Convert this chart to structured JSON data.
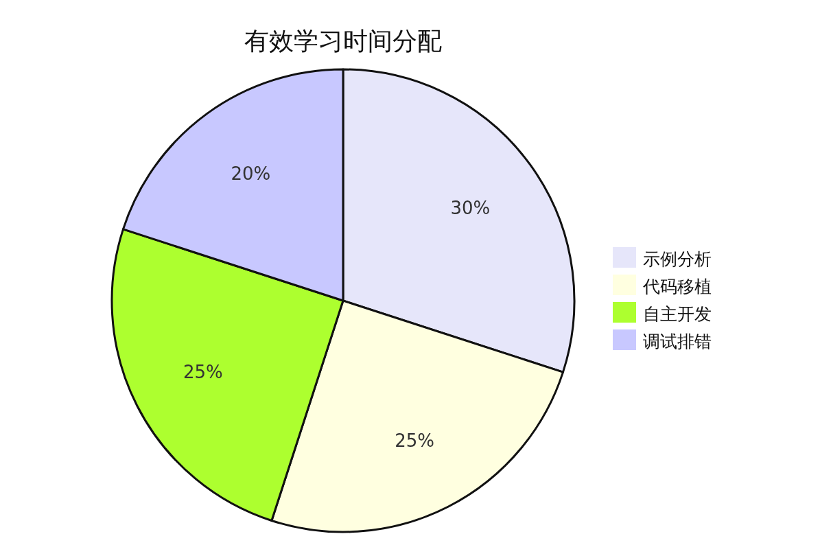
{
  "chart_data": {
    "type": "pie",
    "title": "有效学习时间分配",
    "categories": [
      "示例分析",
      "代码移植",
      "自主开发",
      "调试排错"
    ],
    "values": [
      30,
      25,
      25,
      20
    ],
    "colors": [
      "#e6e6fa",
      "#ffffe0",
      "#adff2f",
      "#c8c8ff"
    ],
    "value_labels": [
      "30%",
      "25%",
      "25%",
      "20%"
    ],
    "legend": "right"
  }
}
